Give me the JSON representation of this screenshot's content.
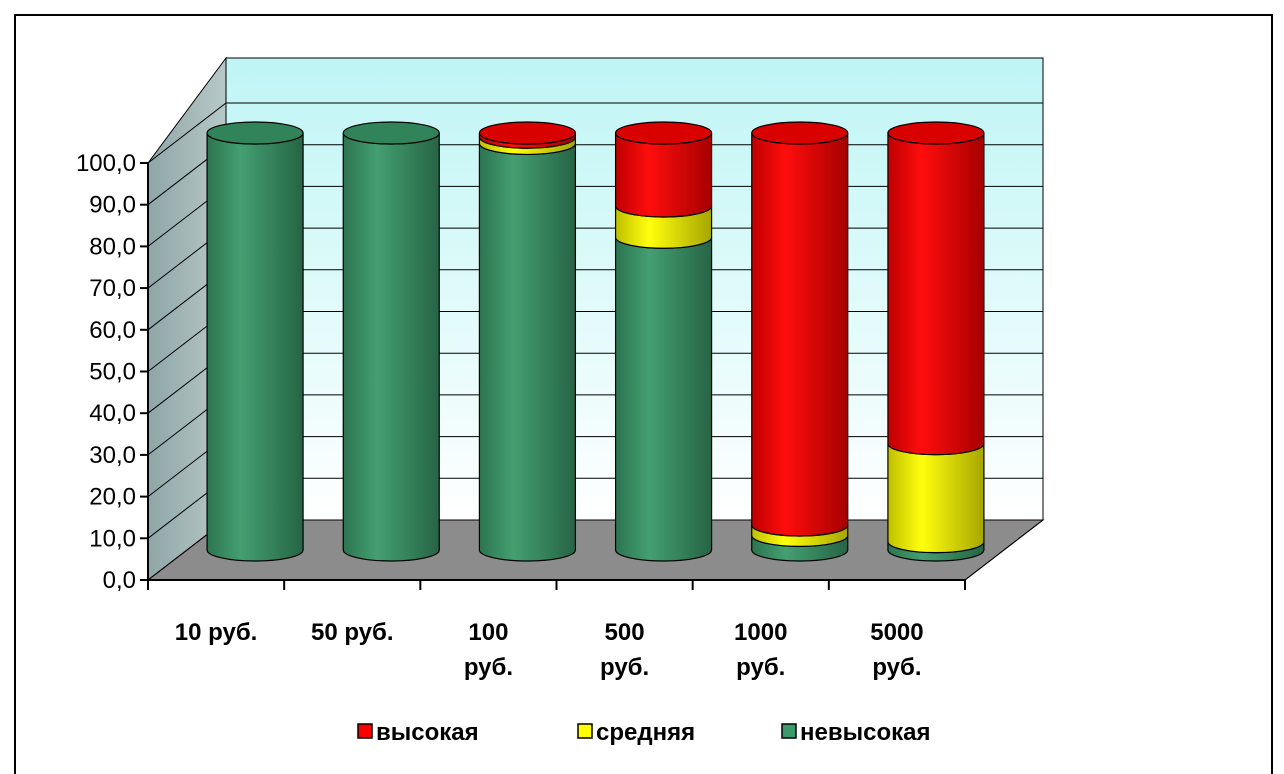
{
  "chart_data": {
    "type": "bar",
    "stacked": true,
    "three_d": "cylinder",
    "categories": [
      [
        "10 руб."
      ],
      [
        "50 руб."
      ],
      [
        "100",
        "руб."
      ],
      [
        "500",
        "руб."
      ],
      [
        "1000",
        "руб."
      ],
      [
        "5000",
        "руб."
      ]
    ],
    "series": [
      {
        "name": "невысокая",
        "color": "#3A9A6A",
        "values": [
          100,
          100,
          97.5,
          75,
          3.5,
          2
        ]
      },
      {
        "name": "средняя",
        "color": "#FFFF00",
        "values": [
          0,
          0,
          1.5,
          7.5,
          2.5,
          23.5
        ]
      },
      {
        "name": "высокая",
        "color": "#FF0000",
        "values": [
          0,
          0,
          1,
          17.5,
          94,
          74.5
        ]
      }
    ],
    "legend_order": [
      "высокая",
      "средняя",
      "невысокая"
    ],
    "legend_position": "bottom",
    "yticks": [
      "0,0",
      "10,0",
      "20,0",
      "30,0",
      "40,0",
      "50,0",
      "60,0",
      "70,0",
      "80,0",
      "90,0",
      "100,0"
    ],
    "ylim": [
      0,
      100
    ],
    "grid": true,
    "title": "",
    "xlabel": "",
    "ylabel": ""
  }
}
